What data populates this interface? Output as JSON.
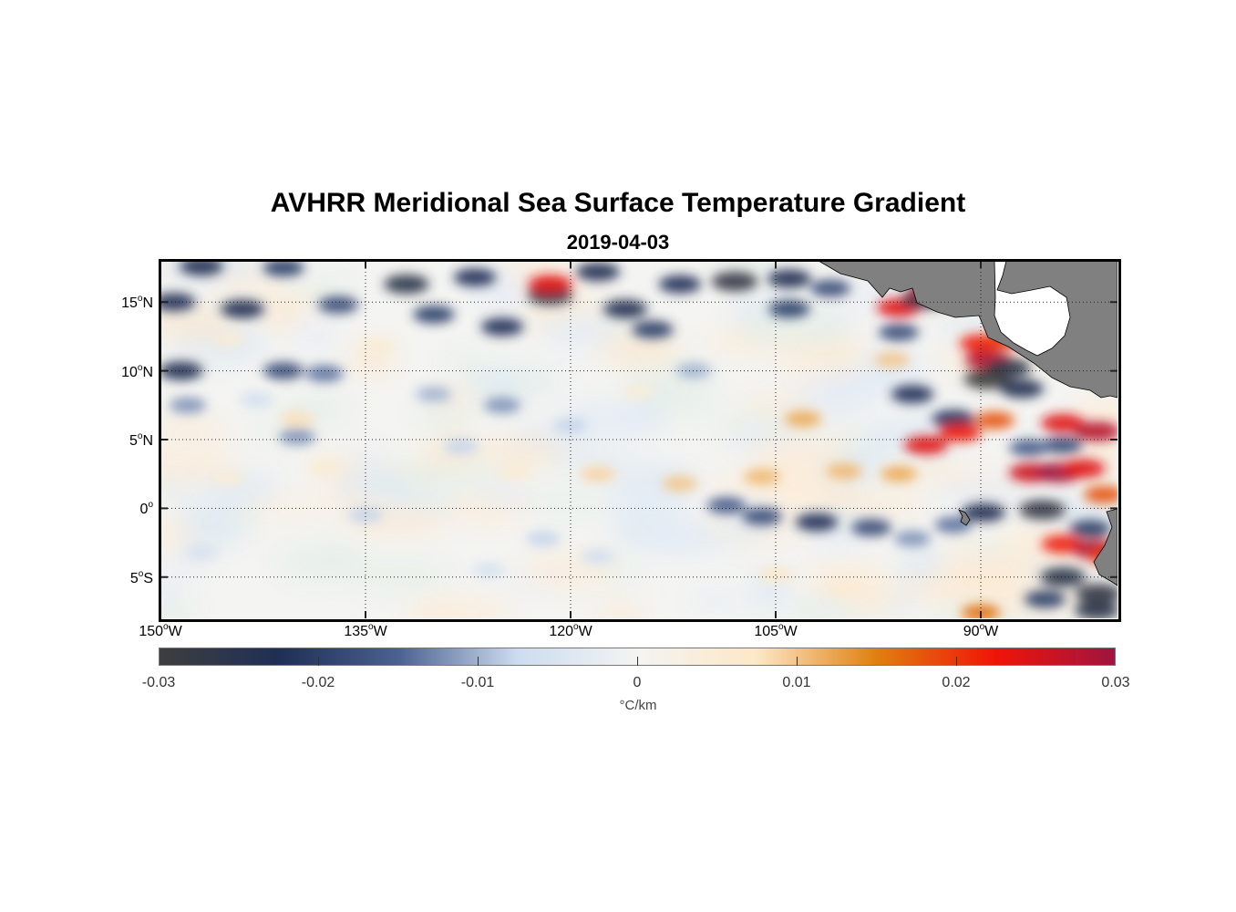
{
  "figure": {
    "title": "AVHRR Meridional Sea Surface Temperature Gradient",
    "subtitle": "2019-04-03"
  },
  "map": {
    "lon_range": [
      -150,
      -80
    ],
    "lat_range": [
      -8,
      18
    ],
    "lat_ticks": [
      {
        "value": 15,
        "num": "15",
        "hemi": "N"
      },
      {
        "value": 10,
        "num": "10",
        "hemi": "N"
      },
      {
        "value": 5,
        "num": "5",
        "hemi": "N"
      },
      {
        "value": 0,
        "num": "0",
        "hemi": ""
      },
      {
        "value": -5,
        "num": "5",
        "hemi": "S"
      }
    ],
    "lon_ticks": [
      {
        "value": -150,
        "num": "150",
        "hemi": "W"
      },
      {
        "value": -135,
        "num": "135",
        "hemi": "W"
      },
      {
        "value": -120,
        "num": "120",
        "hemi": "W"
      },
      {
        "value": -105,
        "num": "105",
        "hemi": "W"
      },
      {
        "value": -90,
        "num": "90",
        "hemi": "W"
      }
    ],
    "land_color": "#808080",
    "gradient_features": [
      {
        "lon": -147,
        "lat": 17.6,
        "value": -0.024
      },
      {
        "lon": -141,
        "lat": 17.5,
        "value": -0.02
      },
      {
        "lon": -149,
        "lat": 15.0,
        "value": -0.022
      },
      {
        "lon": -144,
        "lat": 14.5,
        "value": -0.024
      },
      {
        "lon": -137,
        "lat": 14.8,
        "value": -0.018
      },
      {
        "lon": -132,
        "lat": 16.3,
        "value": -0.026
      },
      {
        "lon": -127,
        "lat": 16.8,
        "value": -0.022
      },
      {
        "lon": -130,
        "lat": 14.1,
        "value": -0.02
      },
      {
        "lon": -125,
        "lat": 13.2,
        "value": -0.022
      },
      {
        "lon": -121.5,
        "lat": 15.5,
        "value": -0.026
      },
      {
        "lon": -121.5,
        "lat": 16.3,
        "value": 0.024
      },
      {
        "lon": -118,
        "lat": 17.2,
        "value": -0.024
      },
      {
        "lon": -116,
        "lat": 14.5,
        "value": -0.024
      },
      {
        "lon": -114,
        "lat": 13.0,
        "value": -0.02
      },
      {
        "lon": -112,
        "lat": 16.3,
        "value": -0.022
      },
      {
        "lon": -108,
        "lat": 16.5,
        "value": -0.028
      },
      {
        "lon": -104,
        "lat": 16.7,
        "value": -0.024
      },
      {
        "lon": -104,
        "lat": 14.5,
        "value": -0.02
      },
      {
        "lon": -101,
        "lat": 16.0,
        "value": -0.018
      },
      {
        "lon": -148.5,
        "lat": 10.0,
        "value": -0.024
      },
      {
        "lon": -141,
        "lat": 10.0,
        "value": -0.018
      },
      {
        "lon": -138,
        "lat": 9.8,
        "value": -0.014
      },
      {
        "lon": -148,
        "lat": 7.5,
        "value": -0.012
      },
      {
        "lon": -140,
        "lat": 6.5,
        "value": 0.008
      },
      {
        "lon": -140,
        "lat": 5.2,
        "value": -0.012
      },
      {
        "lon": -130,
        "lat": 8.3,
        "value": -0.01
      },
      {
        "lon": -125,
        "lat": 7.5,
        "value": -0.012
      },
      {
        "lon": -111,
        "lat": 10.0,
        "value": -0.01
      },
      {
        "lon": -96,
        "lat": 14.6,
        "value": 0.024
      },
      {
        "lon": -94.2,
        "lat": 15.2,
        "value": -0.026
      },
      {
        "lon": -93.6,
        "lat": 15.9,
        "value": 0.028
      },
      {
        "lon": -96,
        "lat": 12.8,
        "value": -0.018
      },
      {
        "lon": -96.5,
        "lat": 10.8,
        "value": 0.01
      },
      {
        "lon": -95,
        "lat": 8.3,
        "value": -0.022
      },
      {
        "lon": -90,
        "lat": 12.0,
        "value": 0.022
      },
      {
        "lon": -88.5,
        "lat": 12.2,
        "value": 0.02
      },
      {
        "lon": -89.5,
        "lat": 10.8,
        "value": 0.028
      },
      {
        "lon": -88,
        "lat": 10.2,
        "value": -0.026
      },
      {
        "lon": -89.5,
        "lat": 9.4,
        "value": -0.03
      },
      {
        "lon": -87,
        "lat": 8.7,
        "value": -0.024
      },
      {
        "lon": -92,
        "lat": 6.5,
        "value": -0.022
      },
      {
        "lon": -103,
        "lat": 6.5,
        "value": 0.012
      },
      {
        "lon": -94,
        "lat": 4.6,
        "value": 0.024
      },
      {
        "lon": -91.5,
        "lat": 5.5,
        "value": 0.022
      },
      {
        "lon": -89,
        "lat": 6.4,
        "value": 0.018
      },
      {
        "lon": -84,
        "lat": 6.2,
        "value": 0.024
      },
      {
        "lon": -81.5,
        "lat": 5.6,
        "value": 0.028
      },
      {
        "lon": -84,
        "lat": 4.6,
        "value": -0.018
      },
      {
        "lon": -86.5,
        "lat": 4.4,
        "value": -0.016
      },
      {
        "lon": -86.3,
        "lat": 2.6,
        "value": 0.026
      },
      {
        "lon": -84.3,
        "lat": 2.6,
        "value": 0.03
      },
      {
        "lon": -82.5,
        "lat": 2.9,
        "value": 0.024
      },
      {
        "lon": -81,
        "lat": 1.0,
        "value": 0.018
      },
      {
        "lon": -85.5,
        "lat": -0.1,
        "value": -0.028
      },
      {
        "lon": -89.8,
        "lat": -0.3,
        "value": -0.024
      },
      {
        "lon": -82,
        "lat": -1.5,
        "value": -0.02
      },
      {
        "lon": -84,
        "lat": -2.6,
        "value": 0.022
      },
      {
        "lon": -81.6,
        "lat": -3.0,
        "value": 0.028
      },
      {
        "lon": -80.6,
        "lat": -3.5,
        "value": 0.02
      },
      {
        "lon": -84,
        "lat": -5.0,
        "value": -0.026
      },
      {
        "lon": -81.4,
        "lat": -6.2,
        "value": -0.028
      },
      {
        "lon": -85.3,
        "lat": -6.6,
        "value": -0.02
      },
      {
        "lon": -81.5,
        "lat": -7.4,
        "value": -0.026
      },
      {
        "lon": -112,
        "lat": 1.8,
        "value": 0.01
      },
      {
        "lon": -106,
        "lat": 2.3,
        "value": 0.011
      },
      {
        "lon": -100,
        "lat": 2.7,
        "value": 0.011
      },
      {
        "lon": -96,
        "lat": 2.5,
        "value": 0.012
      },
      {
        "lon": -118,
        "lat": 2.5,
        "value": 0.009
      },
      {
        "lon": -124,
        "lat": 2.7,
        "value": 0.006
      },
      {
        "lon": -108.6,
        "lat": 0.2,
        "value": -0.016
      },
      {
        "lon": -106,
        "lat": -0.6,
        "value": -0.018
      },
      {
        "lon": -102,
        "lat": -1.0,
        "value": -0.022
      },
      {
        "lon": -98,
        "lat": -1.4,
        "value": -0.018
      },
      {
        "lon": -95,
        "lat": -2.2,
        "value": -0.012
      },
      {
        "lon": -92,
        "lat": -1.2,
        "value": -0.014
      },
      {
        "lon": -90,
        "lat": -7.6,
        "value": 0.016
      },
      {
        "lon": -105,
        "lat": -4.8,
        "value": 0.007
      },
      {
        "lon": -100,
        "lat": -5.8,
        "value": 0.006
      },
      {
        "lon": -128,
        "lat": 4.5,
        "value": -0.008
      },
      {
        "lon": -120,
        "lat": 6.0,
        "value": -0.008
      },
      {
        "lon": -135,
        "lat": -0.5,
        "value": -0.008
      },
      {
        "lon": -122,
        "lat": -2.2,
        "value": -0.008
      },
      {
        "lon": -118,
        "lat": -3.5,
        "value": -0.007
      },
      {
        "lon": -126,
        "lat": -4.5,
        "value": -0.006
      },
      {
        "lon": -145,
        "lat": 2.2,
        "value": 0.005
      },
      {
        "lon": -138,
        "lat": 3.0,
        "value": 0.005
      },
      {
        "lon": -147,
        "lat": -3.2,
        "value": -0.006
      },
      {
        "lon": -145,
        "lat": 12.3,
        "value": 0.005
      },
      {
        "lon": -134,
        "lat": 11.8,
        "value": 0.005
      },
      {
        "lon": -115,
        "lat": 8.5,
        "value": 0.005
      },
      {
        "lon": -143,
        "lat": 7.9,
        "value": -0.007
      }
    ]
  },
  "colorbar": {
    "min": -0.03,
    "max": 0.03,
    "ticks": [
      "-0.03",
      "-0.02",
      "-0.01",
      "0",
      "0.01",
      "0.02",
      "0.03"
    ],
    "unit": "°C/km",
    "colors": [
      "#3e3e40",
      "#1f2f55",
      "#4b6190",
      "#cddcf0",
      "#f4f4f2",
      "#fde7c7",
      "#e0800f",
      "#f01408",
      "#a01440"
    ]
  }
}
